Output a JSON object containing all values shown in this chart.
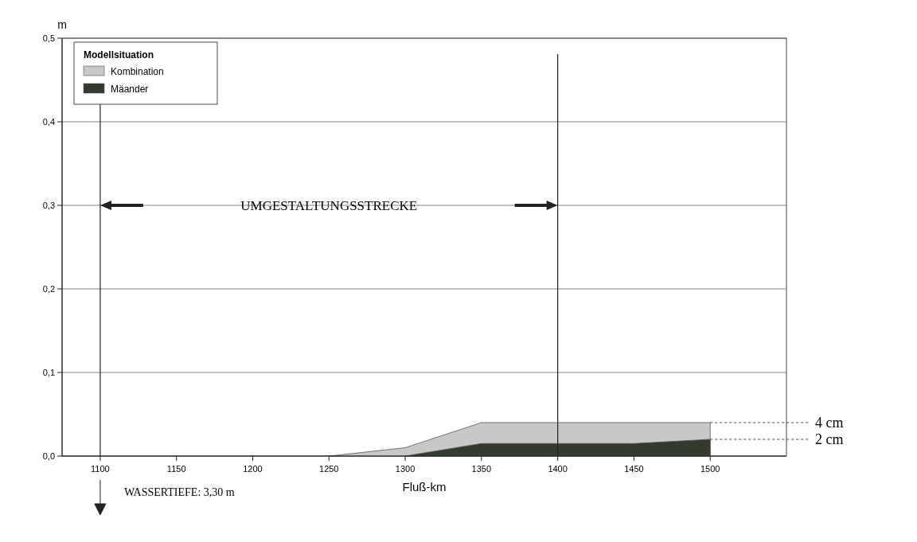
{
  "chart_data": {
    "type": "area",
    "ylabel": "m",
    "xlabel": "Fluß-km",
    "legend_title": "Modellsituation",
    "legend": "top left",
    "grid": "y",
    "xlim": [
      1075,
      1550
    ],
    "xticks": [
      1100,
      1150,
      1200,
      1250,
      1300,
      1350,
      1400,
      1450,
      1500
    ],
    "ylim": [
      0,
      0.5
    ],
    "yticks": [
      {
        "value": 0,
        "label": "0,0"
      },
      {
        "value": 0.1,
        "label": "0,1"
      },
      {
        "value": 0.2,
        "label": "0,2"
      },
      {
        "value": 0.3,
        "label": "0,3"
      },
      {
        "value": 0.4,
        "label": "0,4"
      },
      {
        "value": 0.5,
        "label": "0,5"
      }
    ],
    "series": [
      {
        "name": "Kombination",
        "color": "#c8c8c8",
        "x": [
          1250,
          1300,
          1350,
          1500
        ],
        "values": [
          0,
          0.01,
          0.04,
          0.04
        ]
      },
      {
        "name": "Mäander",
        "color": "#333a2e",
        "x": [
          1300,
          1350,
          1450,
          1500
        ],
        "values": [
          0,
          0.015,
          0.015,
          0.02
        ]
      }
    ],
    "ref_lines": [
      {
        "axis": "x",
        "value": 1100
      },
      {
        "axis": "x",
        "value": 1400
      }
    ],
    "annotations": [
      "UMGESTALTUNGSSTRECKE",
      {
        "text": "4 cm",
        "x": 1500,
        "y": 0.04
      },
      {
        "text": "2 cm",
        "x": 1500,
        "y": 0.02
      },
      "WASSERTIEFE: 3,30 m"
    ]
  }
}
